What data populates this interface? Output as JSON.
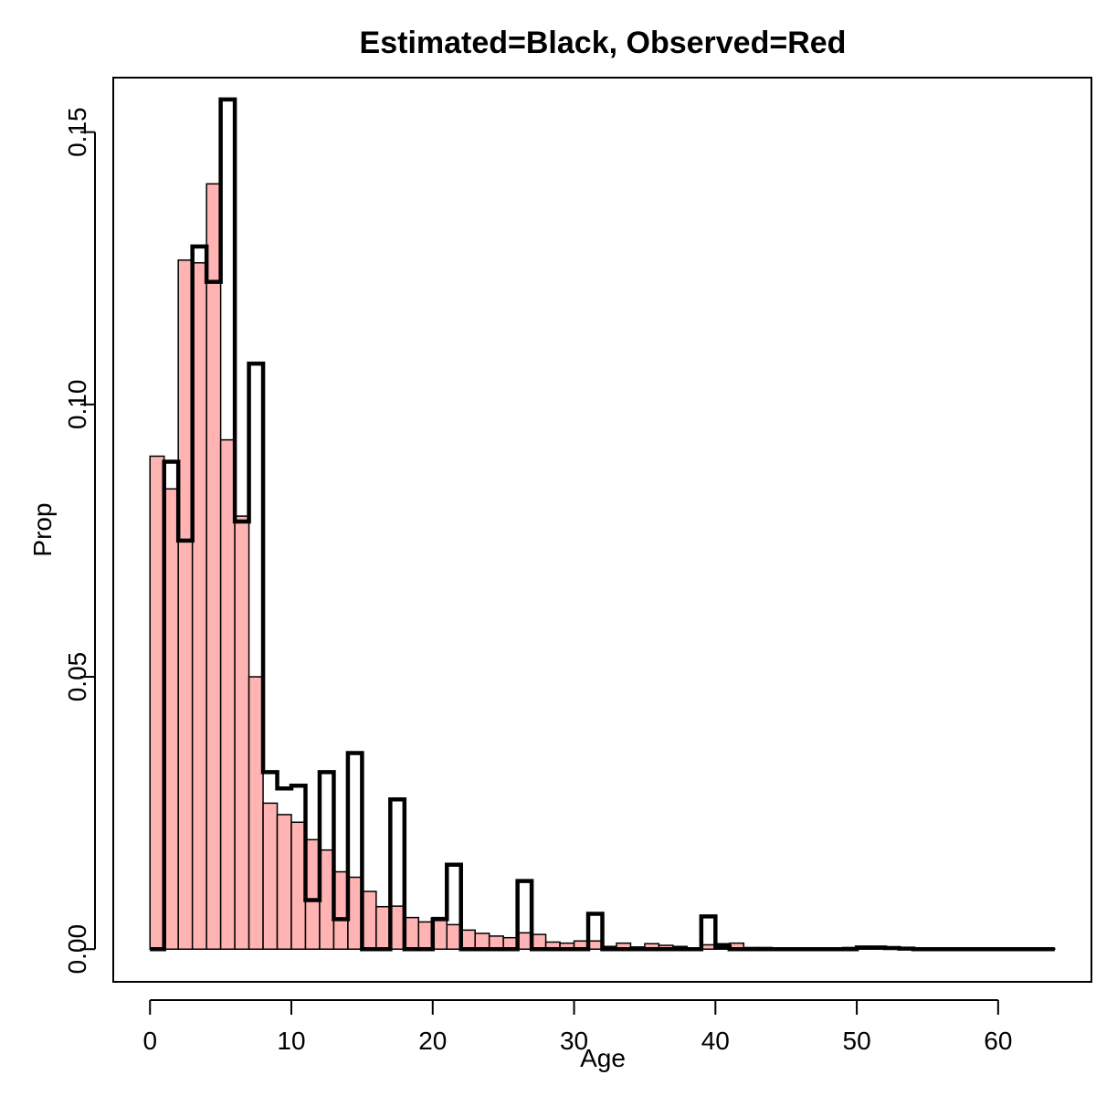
{
  "chart_data": {
    "type": "bar",
    "title": "Estimated=Black, Observed=Red",
    "xlabel": "Age",
    "ylabel": "Prop",
    "xlim": [
      -2.6,
      66.6
    ],
    "ylim": [
      -0.006,
      0.16
    ],
    "x_ticks": [
      0,
      10,
      20,
      30,
      40,
      50,
      60
    ],
    "y_ticks": [
      0.0,
      0.05,
      0.1,
      0.15
    ],
    "y_tick_labels": [
      "0.00",
      "0.05",
      "0.10",
      "0.15"
    ],
    "bin_start": 0,
    "bin_width": 1,
    "series": [
      {
        "role": "observed",
        "style": "filled-bars",
        "color": "#ffb3b3",
        "edge_color": "#000000",
        "values": [
          0.0905,
          0.0845,
          0.1265,
          0.126,
          0.1405,
          0.0935,
          0.0795,
          0.05,
          0.0268,
          0.0247,
          0.0233,
          0.0201,
          0.0182,
          0.0142,
          0.0132,
          0.0106,
          0.0078,
          0.0079,
          0.0058,
          0.005,
          0.0058,
          0.0045,
          0.0035,
          0.0029,
          0.0024,
          0.0021,
          0.003,
          0.0027,
          0.0013,
          0.0011,
          0.0015,
          0.0015,
          0.0005,
          0.0011,
          0.0004,
          0.001,
          0.0007,
          0.0005,
          0.0002,
          0.0008,
          0.001,
          0.0011,
          0.0003,
          0.0003,
          0.0002,
          0.0002,
          0.0002,
          0.0002,
          0.0002,
          0.0003,
          0.0004,
          0.0003,
          0.0002,
          0.0001,
          0.0001,
          0.0001,
          0.0001,
          0.0001,
          0.0001,
          0.0001,
          0.0001,
          0.0001,
          0.0001,
          0.0001
        ]
      },
      {
        "role": "estimated",
        "style": "step-outline",
        "color": "#000000",
        "values": [
          0.0,
          0.0895,
          0.075,
          0.129,
          0.1225,
          0.156,
          0.0785,
          0.1075,
          0.0325,
          0.0295,
          0.03,
          0.009,
          0.0325,
          0.0055,
          0.036,
          0.0,
          0.0,
          0.0275,
          0.0,
          0.0,
          0.0055,
          0.0155,
          0.0,
          0.0,
          0.0,
          0.0,
          0.0125,
          0.0,
          0.0,
          0.0,
          0.0,
          0.0065,
          0.0,
          0.0,
          0.0,
          0.0,
          0.0,
          0.0,
          0.0,
          0.006,
          0.0005,
          0.0,
          0.0,
          0.0,
          0.0,
          0.0,
          0.0,
          0.0,
          0.0,
          0.0,
          0.0003,
          0.0003,
          0.0002,
          0.0001,
          0.0,
          0.0,
          0.0,
          0.0,
          0.0,
          0.0,
          0.0,
          0.0,
          0.0,
          0.0
        ]
      }
    ],
    "grid": false,
    "legend": "none"
  }
}
